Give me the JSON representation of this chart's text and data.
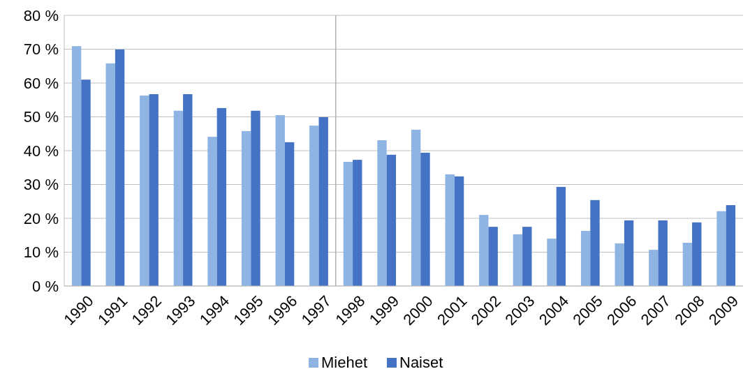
{
  "chart_data": {
    "type": "bar",
    "categories": [
      "1990",
      "1991",
      "1992",
      "1993",
      "1994",
      "1995",
      "1996",
      "1997",
      "1998",
      "1999",
      "2000",
      "2001",
      "2002",
      "2003",
      "2004",
      "2005",
      "2006",
      "2007",
      "2008",
      "2009"
    ],
    "series": [
      {
        "name": "Miehet",
        "color": "#8db4e2",
        "values": [
          70.9,
          65.8,
          56.3,
          51.8,
          44.1,
          45.8,
          50.5,
          47.4,
          36.7,
          43.1,
          46.2,
          33.0,
          21.0,
          15.3,
          14.0,
          16.3,
          12.6,
          10.7,
          12.8,
          22.1
        ]
      },
      {
        "name": "Naiset",
        "color": "#4472c4",
        "values": [
          61.0,
          69.9,
          56.7,
          56.7,
          52.6,
          51.8,
          42.5,
          49.9,
          37.3,
          38.8,
          39.4,
          32.4,
          17.5,
          17.5,
          29.3,
          25.4,
          19.4,
          19.4,
          18.8,
          23.9
        ]
      }
    ],
    "ylim": [
      0,
      80
    ],
    "yticks": [
      {
        "value": 0,
        "label": "0 %"
      },
      {
        "value": 10,
        "label": "10 %"
      },
      {
        "value": 20,
        "label": "20 %"
      },
      {
        "value": 30,
        "label": "30 %"
      },
      {
        "value": 40,
        "label": "40 %"
      },
      {
        "value": 50,
        "label": "50 %"
      },
      {
        "value": 60,
        "label": "60 %"
      },
      {
        "value": 70,
        "label": "70 %"
      },
      {
        "value": 80,
        "label": "80 %"
      }
    ],
    "ref_lines": [
      {
        "axis": "x",
        "value": "1998",
        "color": "#a6a6a6"
      }
    ],
    "grid": "y",
    "legend": "bottom"
  }
}
